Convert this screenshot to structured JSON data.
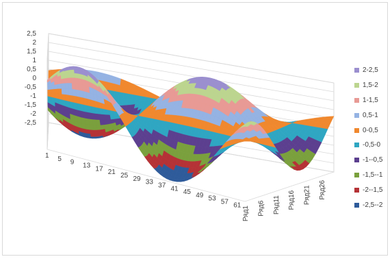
{
  "chart_data": {
    "type": "surface",
    "title": "",
    "z_axis": {
      "ticks": [
        "2,5",
        "2",
        "1,5",
        "1",
        "0,5",
        "0",
        "-0,5",
        "-1",
        "-1,5",
        "-2",
        "-2,5"
      ],
      "zlim": [
        -2.5,
        2.5
      ]
    },
    "x_axis": {
      "ticks": [
        "1",
        "5",
        "9",
        "13",
        "17",
        "21",
        "25",
        "29",
        "33",
        "37",
        "41",
        "45",
        "49",
        "53",
        "57",
        "61"
      ],
      "range": [
        1,
        64
      ]
    },
    "y_axis": {
      "ticks": [
        "Ряд1",
        "Ряд6",
        "Ряд11",
        "Ряд16",
        "Ряд21",
        "Ряд26"
      ],
      "range": [
        1,
        30
      ]
    },
    "legend": {
      "placement": "right",
      "bands": [
        {
          "label": "2-2,5",
          "color": "#9b8fcf"
        },
        {
          "label": "1,5-2",
          "color": "#bcd58f"
        },
        {
          "label": "1-1,5",
          "color": "#e89a95"
        },
        {
          "label": "0,5-1",
          "color": "#95b3e3"
        },
        {
          "label": "0-0,5",
          "color": "#f0882e"
        },
        {
          "label": "-0,5-0",
          "color": "#2fa6c2"
        },
        {
          "label": "-1--0,5",
          "color": "#5c3f8f"
        },
        {
          "label": "-1,5--1",
          "color": "#7aa03d"
        },
        {
          "label": "-2--1,5",
          "color": "#b53236"
        },
        {
          "label": "-2,5--2",
          "color": "#2e5b9a"
        }
      ]
    }
  }
}
